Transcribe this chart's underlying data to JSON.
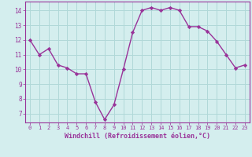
{
  "x": [
    0,
    1,
    2,
    3,
    4,
    5,
    6,
    7,
    8,
    9,
    10,
    11,
    12,
    13,
    14,
    15,
    16,
    17,
    18,
    19,
    20,
    21,
    22,
    23
  ],
  "y": [
    12.0,
    11.0,
    11.4,
    10.3,
    10.1,
    9.7,
    9.7,
    7.8,
    6.6,
    7.6,
    10.0,
    12.5,
    14.0,
    14.2,
    14.0,
    14.2,
    14.0,
    12.9,
    12.9,
    12.6,
    11.9,
    11.0,
    10.1,
    10.3
  ],
  "line_color": "#993399",
  "marker": "D",
  "marker_size": 2.2,
  "bg_color": "#d4eeee",
  "grid_color": "#b0d8d8",
  "xlabel": "Windchill (Refroidissement éolien,°C)",
  "xlabel_color": "#993399",
  "tick_color": "#993399",
  "axis_color": "#993399",
  "ylim": [
    6.4,
    14.6
  ],
  "xlim": [
    -0.5,
    23.5
  ],
  "yticks": [
    7,
    8,
    9,
    10,
    11,
    12,
    13,
    14
  ],
  "xticks": [
    0,
    1,
    2,
    3,
    4,
    5,
    6,
    7,
    8,
    9,
    10,
    11,
    12,
    13,
    14,
    15,
    16,
    17,
    18,
    19,
    20,
    21,
    22,
    23
  ]
}
